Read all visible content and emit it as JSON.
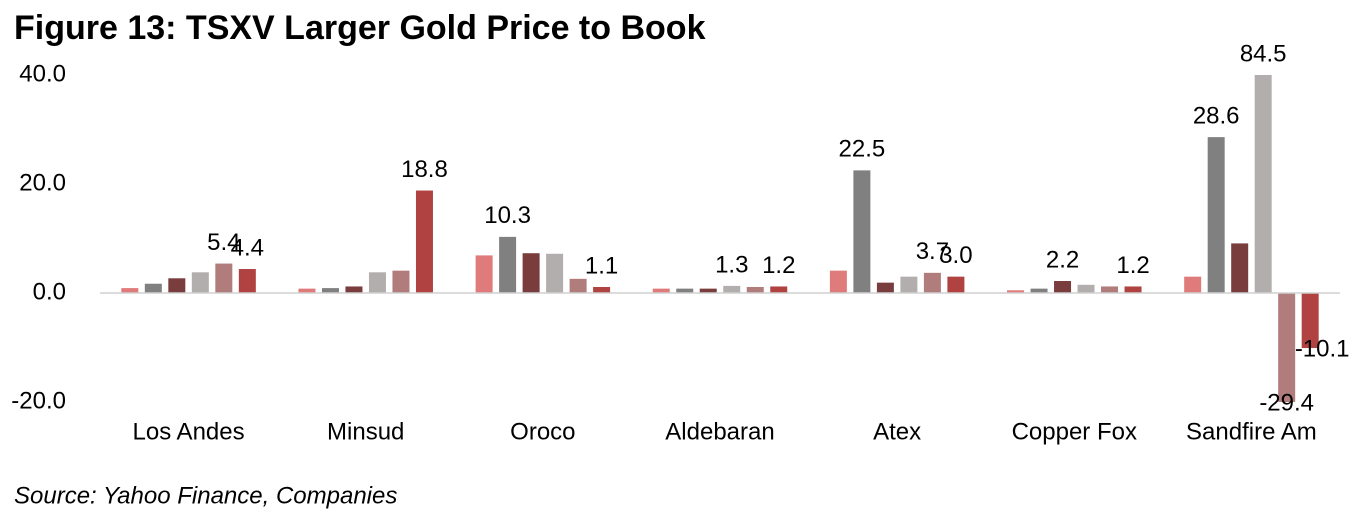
{
  "chart_data": {
    "type": "bar",
    "title": "Figure 13: TSXV Larger Gold Price to Book",
    "source": "Source: Yahoo Finance, Companies",
    "categories": [
      "Los Andes",
      "Minsud",
      "Oroco",
      "Aldebaran",
      "Atex",
      "Copper Fox",
      "Sandfire Am"
    ],
    "series": [
      {
        "color": "#e07b7b",
        "values": [
          0.9,
          0.8,
          6.9,
          0.8,
          4.1,
          0.5,
          3.0
        ],
        "value_labels": [
          null,
          null,
          null,
          null,
          null,
          null,
          null
        ]
      },
      {
        "color": "#808080",
        "values": [
          1.7,
          0.9,
          10.3,
          0.8,
          22.5,
          0.8,
          28.6
        ],
        "value_labels": [
          null,
          null,
          "10.3",
          null,
          "22.5",
          null,
          "28.6"
        ]
      },
      {
        "color": "#7a3d3d",
        "values": [
          2.7,
          1.2,
          7.3,
          0.8,
          1.9,
          2.2,
          9.1
        ],
        "value_labels": [
          null,
          null,
          null,
          null,
          null,
          "2.2",
          null
        ]
      },
      {
        "color": "#b3aeae",
        "values": [
          3.8,
          3.8,
          7.2,
          1.3,
          3.0,
          1.5,
          84.5
        ],
        "value_labels": [
          null,
          null,
          null,
          "1.3",
          null,
          null,
          "84.5"
        ]
      },
      {
        "color": "#b07c7c",
        "values": [
          5.4,
          4.1,
          2.6,
          1.1,
          3.7,
          1.2,
          -29.4
        ],
        "value_labels": [
          "5.4",
          null,
          null,
          null,
          "3.7",
          null,
          "-29.4"
        ]
      },
      {
        "color": "#b04242",
        "values": [
          4.4,
          18.8,
          1.1,
          1.2,
          3.0,
          1.2,
          -10.1
        ],
        "value_labels": [
          "4.4",
          "18.8",
          "1.1",
          "1.2",
          "3.0",
          "1.2",
          "-10.1"
        ]
      }
    ],
    "ylim": [
      -20,
      40
    ],
    "yticks": [
      {
        "value": -20,
        "label": "-20.0"
      },
      {
        "value": 0,
        "label": "0.0"
      },
      {
        "value": 20,
        "label": "20.0"
      },
      {
        "value": 40,
        "label": "40.0"
      }
    ],
    "grid": false
  }
}
